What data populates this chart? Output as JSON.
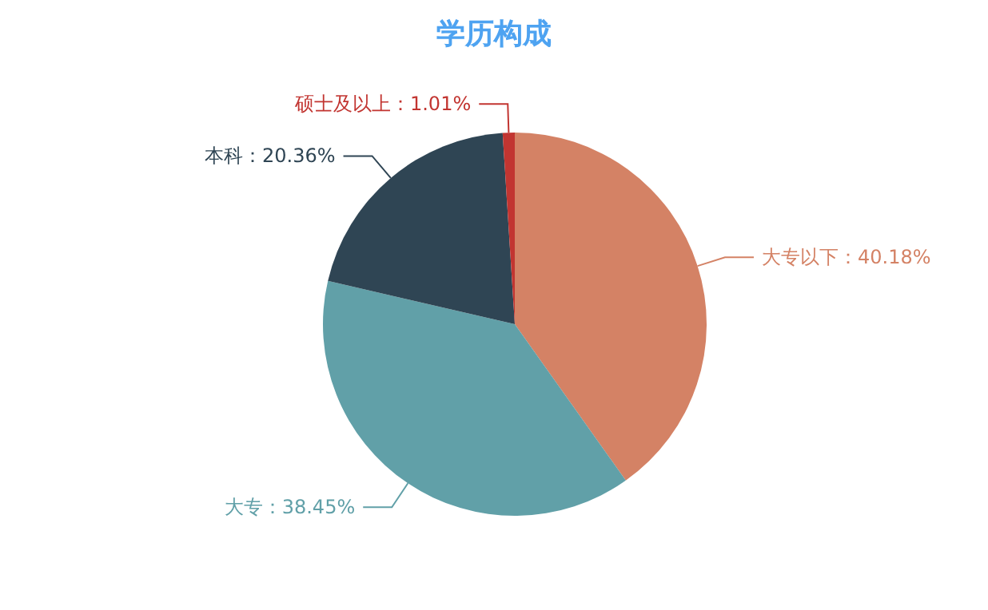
{
  "chart_data": {
    "type": "pie",
    "title": "学历构成",
    "categories": [
      "大专以下",
      "大专",
      "本科",
      "硕士及以上"
    ],
    "values": [
      40.18,
      38.45,
      20.36,
      1.01
    ],
    "value_labels": [
      "：40.18%",
      "：38.45%",
      "：20.36%",
      "：1.01%"
    ],
    "colors": [
      "#d48265",
      "#61a0a8",
      "#2f4554",
      "#c23531"
    ]
  }
}
